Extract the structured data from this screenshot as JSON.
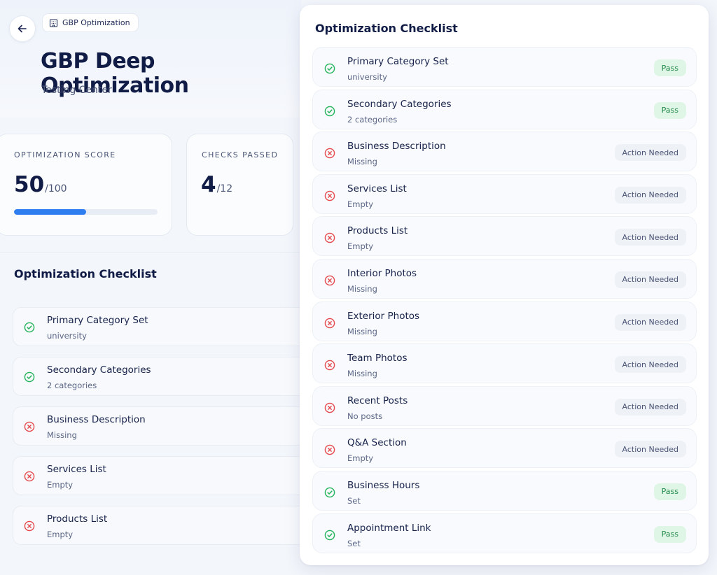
{
  "header": {
    "breadcrumb_icon": "building-icon",
    "breadcrumb_label": "GBP Optimization",
    "title": "GBP Deep Optimization",
    "subtitle": "Testing Center"
  },
  "stats": {
    "score_label": "OPTIMIZATION SCORE",
    "score_value": "50",
    "score_max": "/100",
    "score_progress": 0.5,
    "checks_label": "CHECKS PASSED",
    "checks_value": "4",
    "checks_total": "/12"
  },
  "colors": {
    "accent": "#2f7ef0",
    "pass_green": "#22b35a",
    "fail_red": "#e5484d"
  },
  "left_checklist": {
    "heading": "Optimization Checklist",
    "items": [
      {
        "title": "Primary Category Set",
        "detail": "university",
        "status": "pass"
      },
      {
        "title": "Secondary Categories",
        "detail": "2 categories",
        "status": "pass"
      },
      {
        "title": "Business Description",
        "detail": "Missing",
        "status": "fail"
      },
      {
        "title": "Services List",
        "detail": "Empty",
        "status": "fail"
      },
      {
        "title": "Products List",
        "detail": "Empty",
        "status": "fail"
      }
    ]
  },
  "panel": {
    "title": "Optimization Checklist",
    "pass_label": "Pass",
    "fail_label": "Action Needed",
    "items": [
      {
        "title": "Primary Category Set",
        "detail": "university",
        "status": "pass",
        "badge": "Pass"
      },
      {
        "title": "Secondary Categories",
        "detail": "2 categories",
        "status": "pass",
        "badge": "Pass"
      },
      {
        "title": "Business Description",
        "detail": "Missing",
        "status": "fail",
        "badge": "Action Needed"
      },
      {
        "title": "Services List",
        "detail": "Empty",
        "status": "fail",
        "badge": "Action Needed"
      },
      {
        "title": "Products List",
        "detail": "Empty",
        "status": "fail",
        "badge": "Action Needed"
      },
      {
        "title": "Interior Photos",
        "detail": "Missing",
        "status": "fail",
        "badge": "Action Needed"
      },
      {
        "title": "Exterior Photos",
        "detail": "Missing",
        "status": "fail",
        "badge": "Action Needed"
      },
      {
        "title": "Team Photos",
        "detail": "Missing",
        "status": "fail",
        "badge": "Action Needed"
      },
      {
        "title": "Recent Posts",
        "detail": "No posts",
        "status": "fail",
        "badge": "Action Needed"
      },
      {
        "title": "Q&A Section",
        "detail": "Empty",
        "status": "fail",
        "badge": "Action Needed"
      },
      {
        "title": "Business Hours",
        "detail": "Set",
        "status": "pass",
        "badge": "Pass"
      },
      {
        "title": "Appointment Link",
        "detail": "Set",
        "status": "pass",
        "badge": "Pass"
      }
    ]
  }
}
